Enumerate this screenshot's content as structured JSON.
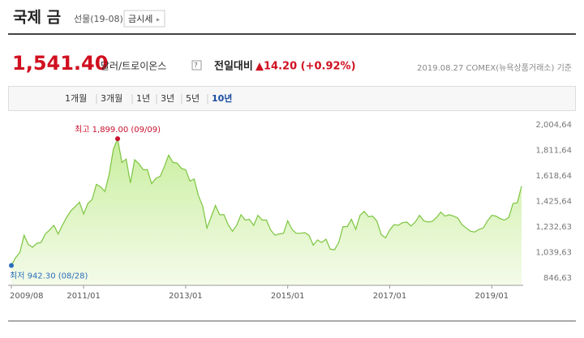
{
  "header": {
    "title": "국제 금",
    "subtitle": "선물(19-08)",
    "button": "금시세"
  },
  "quote": {
    "price": "1,541.40",
    "unit": "달러/트로이온스",
    "help": "?",
    "change_label": "전일대비",
    "change": "▲14.20 (+0.92%)",
    "source": "2019.08.27 COMEX(뉴욕상품거래소) 기준"
  },
  "tabs": [
    "1개월",
    "3개월",
    "1년",
    "3년",
    "5년",
    "10년"
  ],
  "chart_data": {
    "type": "area",
    "color": "#7cc53f",
    "x": [
      "2009/08",
      "2009/09",
      "2009/10",
      "2009/11",
      "2009/12",
      "2010/01",
      "2010/02",
      "2010/03",
      "2010/04",
      "2010/05",
      "2010/06",
      "2010/07",
      "2010/08",
      "2010/09",
      "2010/10",
      "2010/11",
      "2010/12",
      "2011/01",
      "2011/02",
      "2011/03",
      "2011/04",
      "2011/05",
      "2011/06",
      "2011/07",
      "2011/08",
      "2011/09",
      "2011/10",
      "2011/11",
      "2011/12",
      "2012/01",
      "2012/02",
      "2012/03",
      "2012/04",
      "2012/05",
      "2012/06",
      "2012/07",
      "2012/08",
      "2012/09",
      "2012/10",
      "2012/11",
      "2012/12",
      "2013/01",
      "2013/02",
      "2013/03",
      "2013/04",
      "2013/05",
      "2013/06",
      "2013/07",
      "2013/08",
      "2013/09",
      "2013/10",
      "2013/11",
      "2013/12",
      "2014/01",
      "2014/02",
      "2014/03",
      "2014/04",
      "2014/05",
      "2014/06",
      "2014/07",
      "2014/08",
      "2014/09",
      "2014/10",
      "2014/11",
      "2014/12",
      "2015/01",
      "2015/02",
      "2015/03",
      "2015/04",
      "2015/05",
      "2015/06",
      "2015/07",
      "2015/08",
      "2015/09",
      "2015/10",
      "2015/11",
      "2015/12",
      "2016/01",
      "2016/02",
      "2016/03",
      "2016/04",
      "2016/05",
      "2016/06",
      "2016/07",
      "2016/08",
      "2016/09",
      "2016/10",
      "2016/11",
      "2016/12",
      "2017/01",
      "2017/02",
      "2017/03",
      "2017/04",
      "2017/05",
      "2017/06",
      "2017/07",
      "2017/08",
      "2017/09",
      "2017/10",
      "2017/11",
      "2017/12",
      "2018/01",
      "2018/02",
      "2018/03",
      "2018/04",
      "2018/05",
      "2018/06",
      "2018/07",
      "2018/08",
      "2018/09",
      "2018/10",
      "2018/11",
      "2018/12",
      "2019/01",
      "2019/02",
      "2019/03",
      "2019/04",
      "2019/05",
      "2019/06",
      "2019/07",
      "2019/08"
    ],
    "values": [
      942.3,
      1000,
      1040,
      1170,
      1100,
      1080,
      1110,
      1115,
      1180,
      1210,
      1245,
      1180,
      1245,
      1305,
      1355,
      1385,
      1420,
      1330,
      1410,
      1440,
      1555,
      1535,
      1500,
      1630,
      1820,
      1899,
      1720,
      1745,
      1565,
      1740,
      1710,
      1665,
      1665,
      1560,
      1600,
      1615,
      1690,
      1775,
      1720,
      1715,
      1675,
      1665,
      1580,
      1595,
      1470,
      1390,
      1225,
      1310,
      1395,
      1325,
      1325,
      1250,
      1200,
      1245,
      1325,
      1285,
      1290,
      1245,
      1320,
      1285,
      1285,
      1210,
      1170,
      1180,
      1185,
      1280,
      1215,
      1185,
      1185,
      1190,
      1170,
      1095,
      1135,
      1115,
      1140,
      1065,
      1060,
      1115,
      1235,
      1235,
      1290,
      1215,
      1320,
      1350,
      1310,
      1315,
      1275,
      1175,
      1150,
      1210,
      1250,
      1245,
      1265,
      1270,
      1240,
      1270,
      1320,
      1280,
      1270,
      1275,
      1305,
      1345,
      1315,
      1325,
      1315,
      1300,
      1250,
      1225,
      1200,
      1195,
      1215,
      1225,
      1280,
      1320,
      1315,
      1295,
      1285,
      1305,
      1410,
      1415,
      1541.4
    ],
    "xticks": [
      "2009/08",
      "2011/01",
      "2013/01",
      "2015/01",
      "2017/01",
      "2019/01"
    ],
    "ylim": [
      792,
      2053
    ],
    "yticks": [
      {
        "value": 846.63,
        "label": "846,63"
      },
      {
        "value": 1039.63,
        "label": "1,039,63"
      },
      {
        "value": 1232.63,
        "label": "1,232,63"
      },
      {
        "value": 1425.64,
        "label": "1,425,64"
      },
      {
        "value": 1618.64,
        "label": "1,618,64"
      },
      {
        "value": 1811.64,
        "label": "1,811,64"
      },
      {
        "value": 2004.64,
        "label": "2,004,64"
      }
    ],
    "annotations": [
      {
        "text": "최고 1,899.00 (09/09)",
        "color": "#c8102e"
      },
      {
        "text": "최저  942.30 (08/28)",
        "color": "#2a6ebb"
      }
    ]
  }
}
